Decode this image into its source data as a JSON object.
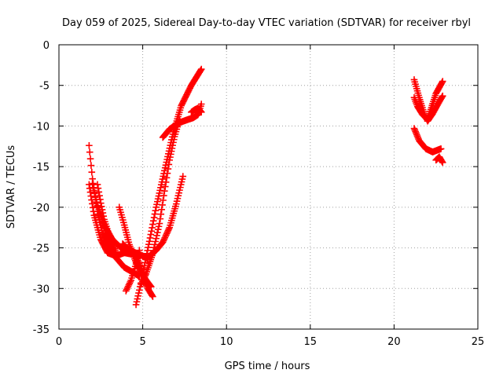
{
  "chart_data": {
    "type": "scatter",
    "title": "Day 059 of 2025, Sidereal Day-to-day VTEC variation (SDTVAR) for receiver rbyl",
    "xlabel": "GPS time / hours",
    "ylabel": "SDTVAR / TECUs",
    "xlim": [
      0,
      25
    ],
    "ylim": [
      -35,
      0
    ],
    "xticks": [
      0,
      5,
      10,
      15,
      20,
      25
    ],
    "yticks": [
      0,
      -5,
      -10,
      -15,
      -20,
      -25,
      -30,
      -35
    ],
    "grid": true,
    "marker": "plus",
    "color": "#ff0000",
    "series": [
      {
        "x": [
          1.8,
          2.1,
          2.5,
          2.9,
          3.4,
          3.9,
          4.4
        ],
        "y": [
          -17.2,
          -21.0,
          -24.0,
          -25.6,
          -26.0,
          -25.6,
          -25.8
        ]
      },
      {
        "x": [
          1.8,
          2.0,
          2.3,
          2.6,
          3.1,
          3.5
        ],
        "y": [
          -12.4,
          -16.5,
          -20.5,
          -23.2,
          -25.2,
          -26.0
        ]
      },
      {
        "x": [
          2.0,
          2.3,
          2.7,
          3.2,
          3.7,
          4.2,
          4.8,
          5.3
        ],
        "y": [
          -17.2,
          -19.8,
          -22.2,
          -24.0,
          -25.0,
          -25.3,
          -25.8,
          -26.3
        ]
      },
      {
        "x": [
          2.3,
          2.5,
          2.7,
          3.0,
          3.4
        ],
        "y": [
          -17.2,
          -19.5,
          -21.5,
          -23.5,
          -25.5
        ]
      },
      {
        "x": [
          2.6,
          2.9,
          3.4,
          3.9,
          4.4,
          4.8
        ],
        "y": [
          -22.0,
          -24.0,
          -26.2,
          -27.4,
          -28.0,
          -28.5
        ]
      },
      {
        "x": [
          3.6,
          3.9,
          4.2,
          4.6,
          5.0,
          5.5
        ],
        "y": [
          -20.0,
          -22.2,
          -24.6,
          -26.8,
          -28.4,
          -29.8
        ]
      },
      {
        "x": [
          3.8,
          4.2,
          4.6,
          4.9,
          5.1,
          5.3,
          5.6
        ],
        "y": [
          -24.5,
          -25.3,
          -26.0,
          -27.5,
          -29.0,
          -30.0,
          -31.0
        ]
      },
      {
        "x": [
          4.0,
          4.3,
          4.6,
          4.8
        ],
        "y": [
          -30.3,
          -29.0,
          -27.0,
          -25.3
        ]
      },
      {
        "x": [
          4.6,
          4.8,
          5.1,
          5.4,
          5.8,
          6.3,
          6.8,
          7.3,
          7.9,
          8.5
        ],
        "y": [
          -32.0,
          -30.2,
          -27.2,
          -24.2,
          -20.0,
          -15.5,
          -11.0,
          -7.5,
          -5.0,
          -3.0
        ]
      },
      {
        "x": [
          4.9,
          5.2,
          5.6,
          6.0,
          6.3,
          6.6,
          6.9,
          7.2
        ],
        "y": [
          -29.5,
          -28.2,
          -25.7,
          -22.0,
          -18.0,
          -14.2,
          -11.3,
          -9.2
        ]
      },
      {
        "x": [
          5.4,
          5.8,
          6.2,
          6.6,
          7.0,
          7.4
        ],
        "y": [
          -26.0,
          -25.3,
          -24.3,
          -22.5,
          -19.6,
          -16.2
        ]
      },
      {
        "x": [
          6.2,
          6.6,
          7.0,
          7.3,
          7.7,
          8.0,
          8.3,
          8.5
        ],
        "y": [
          -11.4,
          -10.4,
          -9.8,
          -9.5,
          -9.2,
          -9.0,
          -8.6,
          -7.3
        ]
      },
      {
        "x": [
          7.9,
          8.1,
          8.3,
          8.5
        ],
        "y": [
          -8.3,
          -8.0,
          -7.8,
          -8.3
        ]
      },
      {
        "x": [
          21.2,
          21.5,
          21.8,
          22.0,
          22.3,
          22.7,
          22.9
        ],
        "y": [
          -4.3,
          -6.5,
          -8.5,
          -9.4,
          -8.5,
          -7.0,
          -6.3
        ]
      },
      {
        "x": [
          21.2,
          21.4,
          21.7,
          22.0,
          22.5,
          22.9
        ],
        "y": [
          -6.5,
          -7.6,
          -8.6,
          -9.2,
          -6.0,
          -4.5
        ]
      },
      {
        "x": [
          21.2,
          21.5,
          21.9,
          22.3,
          22.8
        ],
        "y": [
          -10.3,
          -11.8,
          -12.8,
          -13.2,
          -12.8
        ]
      },
      {
        "x": [
          22.5,
          22.7,
          22.9
        ],
        "y": [
          -14.2,
          -13.8,
          -14.5
        ]
      }
    ]
  }
}
